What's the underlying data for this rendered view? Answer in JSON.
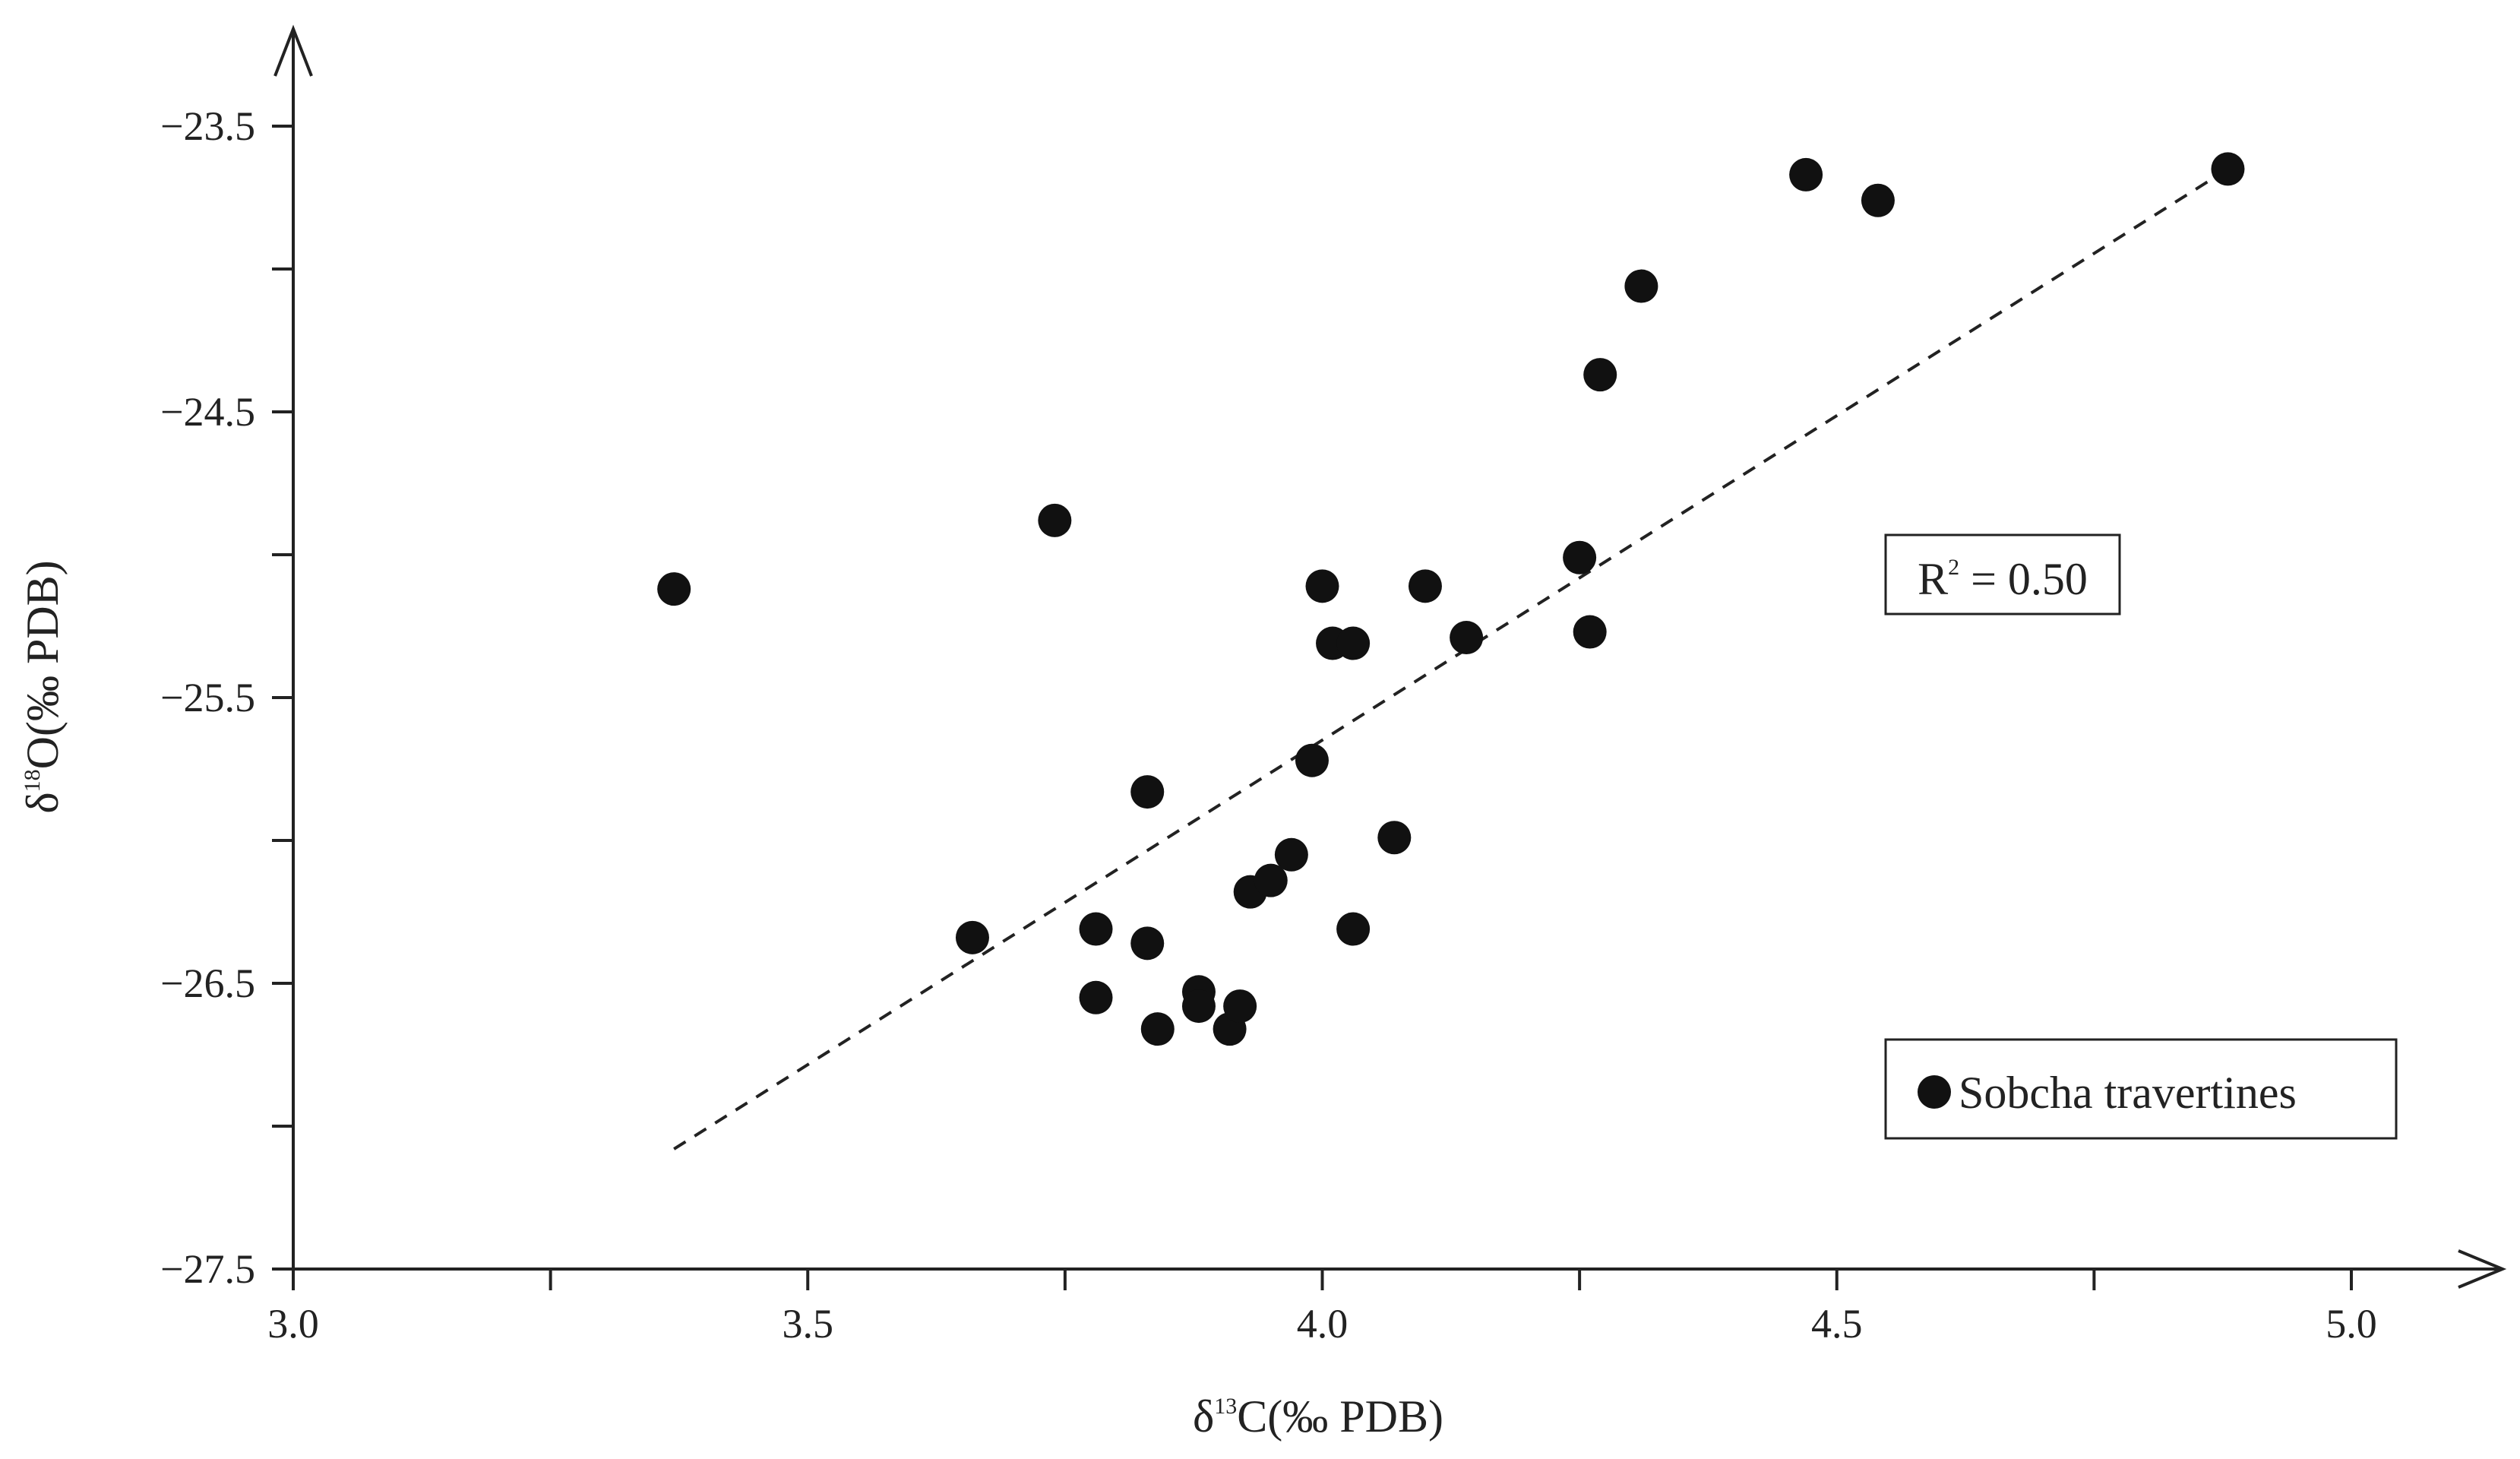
{
  "chart_data": {
    "type": "scatter",
    "xlabel": {
      "prefix": "δ",
      "sup": "13",
      "rest": "C(‰ PDB)"
    },
    "ylabel": {
      "prefix": "δ",
      "sup": "18",
      "rest": "O(‰ PDB)"
    },
    "xlim": [
      3.0,
      5.0
    ],
    "ylim": [
      -27.5,
      -23.0
    ],
    "x_ticks": [
      3.0,
      3.25,
      3.5,
      3.75,
      4.0,
      4.25,
      4.5,
      4.75,
      5.0
    ],
    "x_tick_labels": [
      "3.0",
      "",
      "3.5",
      "",
      "4.0",
      "",
      "4.5",
      "",
      "5.0"
    ],
    "y_ticks": [
      -27.5,
      -27.0,
      -26.5,
      -26.0,
      -25.5,
      -25.0,
      -24.5,
      -24.0,
      -23.5,
      -23.0
    ],
    "y_tick_labels": [
      "−27.5",
      "",
      "−26.5",
      "",
      "−25.5",
      "",
      "−24.5",
      "",
      "−23.5",
      ""
    ],
    "grid": false,
    "legend": {
      "position": "bottom-right",
      "label": "Sobcha travertines",
      "color": "#111111"
    },
    "annotation": {
      "prefix": "R",
      "sup": "2",
      "rest": " = 0.50"
    },
    "trendline": {
      "x": [
        3.37,
        4.88
      ],
      "y": [
        -27.08,
        -23.65
      ]
    },
    "series": [
      {
        "name": "Sobcha travertines",
        "color": "#111111",
        "points": [
          [
            3.37,
            -25.12
          ],
          [
            3.66,
            -26.34
          ],
          [
            3.74,
            -24.88
          ],
          [
            3.78,
            -26.31
          ],
          [
            3.78,
            -26.55
          ],
          [
            3.83,
            -25.83
          ],
          [
            3.83,
            -26.36
          ],
          [
            3.84,
            -26.66
          ],
          [
            3.88,
            -26.53
          ],
          [
            3.88,
            -26.58
          ],
          [
            3.91,
            -26.66
          ],
          [
            3.92,
            -26.58
          ],
          [
            3.93,
            -26.18
          ],
          [
            3.95,
            -26.14
          ],
          [
            3.97,
            -26.05
          ],
          [
            3.99,
            -25.72
          ],
          [
            4.0,
            -25.11
          ],
          [
            4.01,
            -25.31
          ],
          [
            4.03,
            -25.31
          ],
          [
            4.03,
            -26.31
          ],
          [
            4.07,
            -25.99
          ],
          [
            4.1,
            -25.11
          ],
          [
            4.14,
            -25.29
          ],
          [
            4.25,
            -25.01
          ],
          [
            4.26,
            -25.27
          ],
          [
            4.27,
            -24.37
          ],
          [
            4.31,
            -24.06
          ],
          [
            4.47,
            -23.67
          ],
          [
            4.54,
            -23.76
          ],
          [
            4.88,
            -23.65
          ]
        ]
      }
    ]
  }
}
